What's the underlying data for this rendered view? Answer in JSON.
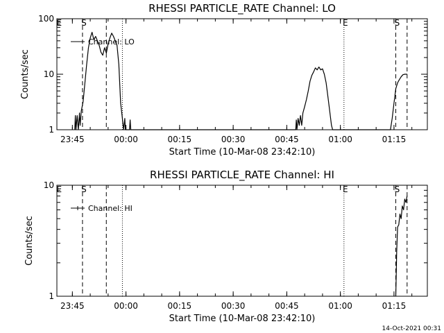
{
  "footer": "14-Oct-2021 00:31",
  "colors": {
    "background": "#ffffff",
    "ink": "#000000"
  },
  "chart_data": [
    {
      "type": "line",
      "title": "RHESSI PARTICLE_RATE Channel: LO",
      "xlabel": "Start Time (10-Mar-08 23:42:10)",
      "ylabel": "Counts/sec",
      "y_scale": "log",
      "ylim": [
        1,
        100
      ],
      "y_ticks": [
        1,
        10,
        100
      ],
      "y_tick_labels": [
        "1",
        "10",
        "100"
      ],
      "xlim": [
        "23:40:40",
        "01:24:20"
      ],
      "x_ticks": [
        "23:45",
        "00:00",
        "00:15",
        "00:30",
        "00:45",
        "01:00",
        "01:15"
      ],
      "legend": {
        "label": "Channel: LO",
        "position": "top-left",
        "symbol": "line"
      },
      "markers": [
        {
          "time": "23:40:55",
          "label": "E",
          "style": "none"
        },
        {
          "time": "23:47:50",
          "label": "S",
          "style": "dashed"
        },
        {
          "time": "23:54:30",
          "label": "",
          "style": "dashed"
        },
        {
          "time": "23:59:00",
          "label": "",
          "style": "dotted"
        },
        {
          "time": "01:01:00",
          "label": "E",
          "style": "dotted"
        },
        {
          "time": "01:15:30",
          "label": "S",
          "style": "dashed"
        },
        {
          "time": "01:18:40",
          "label": "",
          "style": "dashed"
        }
      ],
      "series": [
        {
          "name": "Channel: LO",
          "points": [
            [
              "23:45:40",
              1
            ],
            [
              "23:45:50",
              1.8
            ],
            [
              "23:46:00",
              1
            ],
            [
              "23:46:20",
              1.8
            ],
            [
              "23:46:40",
              1
            ],
            [
              "23:47:00",
              2.0
            ],
            [
              "23:47:10",
              1.2
            ],
            [
              "23:47:30",
              2.2
            ],
            [
              "23:48:00",
              3.2
            ],
            [
              "23:48:30",
              7
            ],
            [
              "23:49:00",
              15
            ],
            [
              "23:49:30",
              30
            ],
            [
              "23:50:00",
              45
            ],
            [
              "23:50:30",
              57
            ],
            [
              "23:51:00",
              42
            ],
            [
              "23:51:30",
              48
            ],
            [
              "23:52:00",
              40
            ],
            [
              "23:52:30",
              33
            ],
            [
              "23:53:00",
              25
            ],
            [
              "23:53:30",
              22
            ],
            [
              "23:54:00",
              30
            ],
            [
              "23:54:30",
              24
            ],
            [
              "23:55:00",
              35
            ],
            [
              "23:55:30",
              45
            ],
            [
              "23:56:00",
              55
            ],
            [
              "23:56:30",
              48
            ],
            [
              "23:57:00",
              40
            ],
            [
              "23:57:30",
              33
            ],
            [
              "23:58:00",
              15
            ],
            [
              "23:58:30",
              3
            ],
            [
              "23:59:00",
              1.6
            ],
            [
              "23:59:20",
              1
            ],
            [
              "23:59:40",
              1.6
            ],
            [
              "23:59:50",
              1
            ],
            [
              "00:01:00",
              1
            ],
            [
              "00:01:10",
              1.5
            ],
            [
              "00:01:20",
              1
            ],
            [
              "00:47:30",
              1
            ],
            [
              "00:47:40",
              1.5
            ],
            [
              "00:47:50",
              1
            ],
            [
              "00:48:10",
              1.6
            ],
            [
              "00:48:30",
              1.2
            ],
            [
              "00:48:50",
              1.8
            ],
            [
              "00:49:10",
              1.2
            ],
            [
              "00:49:30",
              2
            ],
            [
              "00:50:00",
              2.6
            ],
            [
              "00:50:30",
              3.5
            ],
            [
              "00:51:00",
              5
            ],
            [
              "00:51:30",
              7.5
            ],
            [
              "00:52:00",
              9.5
            ],
            [
              "00:52:30",
              11
            ],
            [
              "00:53:00",
              13
            ],
            [
              "00:53:30",
              12
            ],
            [
              "00:54:00",
              13.5
            ],
            [
              "00:54:30",
              12
            ],
            [
              "00:55:00",
              12.5
            ],
            [
              "00:55:30",
              10
            ],
            [
              "00:56:00",
              7
            ],
            [
              "00:56:30",
              4
            ],
            [
              "00:57:00",
              2.2
            ],
            [
              "00:57:30",
              1.2
            ],
            [
              "00:57:50",
              1
            ],
            [
              "01:14:00",
              1
            ],
            [
              "01:14:30",
              1.6
            ],
            [
              "01:15:00",
              3
            ],
            [
              "01:15:30",
              5.5
            ],
            [
              "01:16:00",
              7
            ],
            [
              "01:16:30",
              8
            ],
            [
              "01:17:00",
              9
            ],
            [
              "01:17:30",
              9.8
            ],
            [
              "01:18:00",
              10
            ],
            [
              "01:18:40",
              10
            ]
          ]
        }
      ]
    },
    {
      "type": "line",
      "title": "RHESSI PARTICLE_RATE Channel: HI",
      "xlabel": "Start Time (10-Mar-08 23:42:10)",
      "ylabel": "Counts/sec",
      "y_scale": "log",
      "ylim": [
        1,
        10
      ],
      "y_ticks": [
        1,
        10
      ],
      "y_tick_labels": [
        "1",
        "10"
      ],
      "xlim": [
        "23:40:40",
        "01:24:20"
      ],
      "x_ticks": [
        "23:45",
        "00:00",
        "00:15",
        "00:30",
        "00:45",
        "01:00",
        "01:15"
      ],
      "legend": {
        "label": "Channel: HI",
        "position": "top-left",
        "symbol": "plus"
      },
      "markers": [
        {
          "time": "23:40:55",
          "label": "E",
          "style": "none"
        },
        {
          "time": "23:47:50",
          "label": "S",
          "style": "dashed"
        },
        {
          "time": "23:54:30",
          "label": "",
          "style": "dashed"
        },
        {
          "time": "23:59:00",
          "label": "",
          "style": "dotted"
        },
        {
          "time": "01:01:00",
          "label": "E",
          "style": "dotted"
        },
        {
          "time": "01:15:30",
          "label": "S",
          "style": "dashed"
        },
        {
          "time": "01:18:40",
          "label": "",
          "style": "dashed"
        }
      ],
      "series": [
        {
          "name": "Channel: HI",
          "points": [
            [
              "01:15:30",
              1
            ],
            [
              "01:15:45",
              2.5
            ],
            [
              "01:16:00",
              4.2
            ],
            [
              "01:16:20",
              4.4
            ],
            [
              "01:16:40",
              5.5
            ],
            [
              "01:17:00",
              5
            ],
            [
              "01:17:20",
              6.5
            ],
            [
              "01:17:40",
              6
            ],
            [
              "01:18:00",
              7.5
            ],
            [
              "01:18:20",
              7
            ],
            [
              "01:18:40",
              8
            ]
          ]
        }
      ]
    }
  ]
}
